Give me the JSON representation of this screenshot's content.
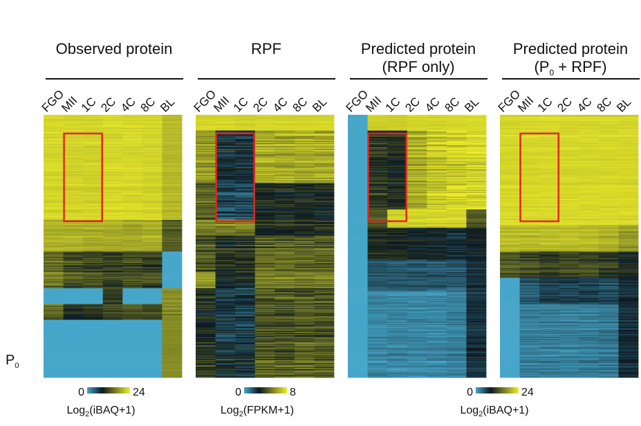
{
  "chart_data": {
    "type": "heatmap",
    "stages": [
      "FGO",
      "MII",
      "1C",
      "2C",
      "4C",
      "8C",
      "BL"
    ],
    "side_label": {
      "main": "P",
      "sub": "0"
    },
    "panels": [
      {
        "id": "observed",
        "title_lines": [
          "Observed protein"
        ],
        "colorbar": {
          "min": "0",
          "max": "24",
          "label_pre": "Log",
          "label_sub": "2",
          "label_post": "(iBAQ+1)"
        },
        "highlight_stages": [
          "MII",
          "1C"
        ],
        "blocks": [
          {
            "frac": 0.4,
            "levels": [
              0.93,
              0.92,
              0.92,
              0.93,
              0.93,
              0.92,
              0.84
            ],
            "noise": 0.06
          },
          {
            "frac": 0.12,
            "levels": [
              0.82,
              0.82,
              0.8,
              0.8,
              0.78,
              0.8,
              0.55
            ],
            "noise": 0.1
          },
          {
            "frac": 0.14,
            "levels": [
              0.62,
              0.52,
              0.5,
              0.45,
              0.5,
              0.48,
              0.0
            ],
            "noise": 0.2
          },
          {
            "frac": 0.06,
            "levels": [
              0.0,
              0.0,
              0.0,
              0.45,
              0.0,
              0.0,
              0.7
            ],
            "noise": 0.1
          },
          {
            "frac": 0.06,
            "levels": [
              0.6,
              0.4,
              0.45,
              0.5,
              0.55,
              0.5,
              0.7
            ],
            "noise": 0.15
          },
          {
            "frac": 0.22,
            "levels": [
              0.0,
              0.0,
              0.0,
              0.0,
              0.0,
              0.0,
              0.7
            ],
            "noise": 0.03
          }
        ]
      },
      {
        "id": "rpf",
        "title_lines": [
          "RPF"
        ],
        "colorbar": {
          "min": "0",
          "max": "8",
          "label_pre": "Log",
          "label_sub": "2",
          "label_post": "(FPKM+1)"
        },
        "highlight_stages": [
          "MII",
          "1C"
        ],
        "blocks": [
          {
            "frac": 0.06,
            "levels": [
              0.93,
              0.93,
              0.92,
              0.93,
              0.93,
              0.93,
              0.93
            ],
            "noise": 0.05
          },
          {
            "frac": 0.2,
            "levels": [
              0.75,
              0.3,
              0.3,
              0.8,
              0.8,
              0.8,
              0.8
            ],
            "noise": 0.18
          },
          {
            "frac": 0.14,
            "levels": [
              0.6,
              0.25,
              0.25,
              0.4,
              0.4,
              0.4,
              0.4
            ],
            "noise": 0.2
          },
          {
            "frac": 0.06,
            "levels": [
              0.7,
              0.7,
              0.7,
              0.45,
              0.45,
              0.45,
              0.45
            ],
            "noise": 0.2
          },
          {
            "frac": 0.14,
            "levels": [
              0.55,
              0.42,
              0.42,
              0.58,
              0.58,
              0.58,
              0.58
            ],
            "noise": 0.22
          },
          {
            "frac": 0.06,
            "levels": [
              0.8,
              0.4,
              0.4,
              0.7,
              0.7,
              0.7,
              0.7
            ],
            "noise": 0.18
          },
          {
            "frac": 0.34,
            "levels": [
              0.42,
              0.3,
              0.3,
              0.55,
              0.55,
              0.55,
              0.55
            ],
            "noise": 0.22
          }
        ]
      },
      {
        "id": "predicted-rpf-only",
        "title_lines": [
          "Predicted protein",
          "(RPF only)"
        ],
        "highlight_stages": [
          "MII",
          "1C"
        ],
        "blocks": [
          {
            "frac": 0.06,
            "levels": [
              0.0,
              0.9,
              0.9,
              0.92,
              0.92,
              0.93,
              0.93
            ],
            "noise": 0.05
          },
          {
            "frac": 0.3,
            "levels": [
              0.0,
              0.45,
              0.4,
              0.8,
              0.88,
              0.92,
              0.93
            ],
            "noise": 0.18
          },
          {
            "frac": 0.07,
            "levels": [
              0.0,
              0.55,
              0.92,
              0.92,
              0.92,
              0.92,
              0.55
            ],
            "noise": 0.1
          },
          {
            "frac": 0.12,
            "levels": [
              0.0,
              0.4,
              0.4,
              0.35,
              0.35,
              0.3,
              0.35
            ],
            "noise": 0.12
          },
          {
            "frac": 0.12,
            "levels": [
              0.0,
              0.2,
              0.2,
              0.2,
              0.2,
              0.2,
              0.3
            ],
            "noise": 0.12
          },
          {
            "frac": 0.33,
            "levels": [
              0.0,
              0.08,
              0.08,
              0.08,
              0.08,
              0.1,
              0.3
            ],
            "noise": 0.1
          }
        ]
      },
      {
        "id": "predicted-p0-rpf",
        "title_lines": [
          "Predicted protein",
          "(P0 + RPF)"
        ],
        "title_second_parts": {
          "pre": "(P",
          "sub": "0",
          "post": " + RPF)"
        },
        "colorbar": {
          "min": "0",
          "max": "24",
          "label_pre": "Log",
          "label_sub": "2",
          "label_post": "(iBAQ+1)"
        },
        "highlight_stages": [
          "MII",
          "1C"
        ],
        "blocks": [
          {
            "frac": 0.42,
            "levels": [
              0.93,
              0.93,
              0.93,
              0.93,
              0.93,
              0.93,
              0.93
            ],
            "noise": 0.05
          },
          {
            "frac": 0.1,
            "levels": [
              0.85,
              0.85,
              0.85,
              0.85,
              0.85,
              0.82,
              0.75
            ],
            "noise": 0.1
          },
          {
            "frac": 0.1,
            "levels": [
              0.55,
              0.5,
              0.45,
              0.5,
              0.5,
              0.45,
              0.4
            ],
            "noise": 0.15
          },
          {
            "frac": 0.1,
            "levels": [
              0.0,
              0.2,
              0.25,
              0.25,
              0.25,
              0.22,
              0.3
            ],
            "noise": 0.12
          },
          {
            "frac": 0.28,
            "levels": [
              0.0,
              0.1,
              0.1,
              0.1,
              0.1,
              0.12,
              0.3
            ],
            "noise": 0.1
          }
        ]
      }
    ],
    "colorscale": {
      "stops": [
        "#46a6c9",
        "#0c1820",
        "#eeee2a"
      ],
      "highlight_color": "#e8231f"
    }
  }
}
